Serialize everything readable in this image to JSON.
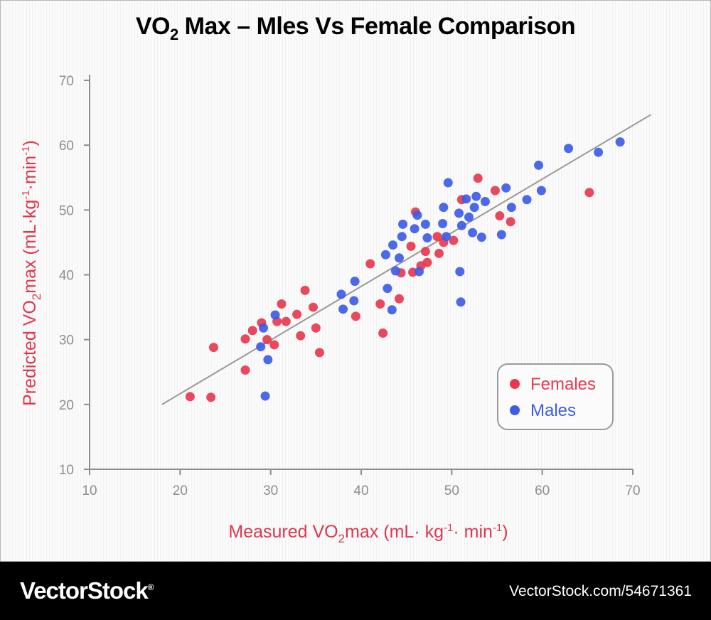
{
  "title": {
    "prefix": "VO",
    "subscript": "2",
    "suffix": " Max – Mles Vs Female Comparison"
  },
  "colors": {
    "females": "#e8384f",
    "males": "#3d5ce8",
    "axis": "#8e8e8e",
    "label": "#e0364d",
    "trend": "#999999"
  },
  "chart_data": {
    "type": "scatter",
    "title": "VO2 Max – Mles Vs Female Comparison",
    "xlabel": "Measured VO2max (mL·kg-1·min-1)",
    "ylabel": "Predicted VO2max (mL·kg-1·min-1)",
    "xlim": [
      10,
      70
    ],
    "ylim": [
      10,
      70
    ],
    "xticks": [
      10,
      20,
      30,
      40,
      50,
      60,
      70
    ],
    "yticks": [
      10,
      20,
      30,
      40,
      50,
      60,
      70
    ],
    "legend_position": "bottom-right",
    "trendline": {
      "x": [
        18,
        72
      ],
      "y": [
        20,
        64.7
      ]
    },
    "series": [
      {
        "name": "Females",
        "color": "#e8384f",
        "points": [
          [
            21.1,
            21.2
          ],
          [
            23.4,
            21.1
          ],
          [
            23.7,
            28.8
          ],
          [
            27.2,
            25.3
          ],
          [
            27.2,
            30.1
          ],
          [
            28,
            31.4
          ],
          [
            29,
            32.6
          ],
          [
            29.6,
            30
          ],
          [
            30.4,
            29.2
          ],
          [
            30.7,
            32.8
          ],
          [
            31.2,
            35.5
          ],
          [
            31.7,
            32.8
          ],
          [
            32.9,
            33.9
          ],
          [
            33.3,
            30.6
          ],
          [
            33.8,
            37.6
          ],
          [
            34.7,
            35
          ],
          [
            35,
            31.8
          ],
          [
            35.4,
            28
          ],
          [
            39.4,
            33.6
          ],
          [
            41,
            41.7
          ],
          [
            42.1,
            35.5
          ],
          [
            42.4,
            31
          ],
          [
            44.2,
            36.3
          ],
          [
            44.4,
            40.3
          ],
          [
            45.5,
            44.4
          ],
          [
            45.7,
            40.4
          ],
          [
            46,
            49.7
          ],
          [
            46.6,
            41.4
          ],
          [
            47.1,
            43.6
          ],
          [
            47.3,
            41.9
          ],
          [
            48.4,
            45.9
          ],
          [
            48.6,
            43.3
          ],
          [
            49.1,
            45
          ],
          [
            50.2,
            45.3
          ],
          [
            51.1,
            51.6
          ],
          [
            52.9,
            54.9
          ],
          [
            54.8,
            53
          ],
          [
            55.3,
            49.1
          ],
          [
            56.5,
            48.2
          ],
          [
            65.2,
            52.7
          ]
        ]
      },
      {
        "name": "Males",
        "color": "#3d5ce8",
        "points": [
          [
            28.9,
            28.9
          ],
          [
            29.2,
            31.8
          ],
          [
            29.4,
            21.3
          ],
          [
            29.7,
            26.9
          ],
          [
            30.5,
            33.8
          ],
          [
            37.8,
            37
          ],
          [
            38,
            34.7
          ],
          [
            39.3,
            39
          ],
          [
            39.2,
            36
          ],
          [
            42.7,
            43.1
          ],
          [
            42.9,
            37.9
          ],
          [
            43.4,
            34.6
          ],
          [
            43.5,
            44.6
          ],
          [
            43.8,
            40.6
          ],
          [
            44.2,
            42.6
          ],
          [
            44.5,
            45.9
          ],
          [
            44.6,
            47.8
          ],
          [
            45.9,
            47.1
          ],
          [
            46.2,
            49.2
          ],
          [
            46.4,
            40.5
          ],
          [
            47.1,
            47.8
          ],
          [
            47.3,
            45.7
          ],
          [
            49,
            47.9
          ],
          [
            49.1,
            50.4
          ],
          [
            49.4,
            45.9
          ],
          [
            49.6,
            54.2
          ],
          [
            50.8,
            49.5
          ],
          [
            50.9,
            40.5
          ],
          [
            51,
            35.8
          ],
          [
            51.1,
            47.6
          ],
          [
            51.6,
            51.7
          ],
          [
            51.9,
            48.9
          ],
          [
            52.3,
            46.5
          ],
          [
            52.5,
            50.4
          ],
          [
            52.7,
            52.1
          ],
          [
            53.3,
            45.8
          ],
          [
            53.7,
            51.3
          ],
          [
            55.5,
            46.2
          ],
          [
            56,
            53.4
          ],
          [
            56.6,
            50.4
          ],
          [
            58.3,
            51.6
          ],
          [
            59.6,
            56.9
          ],
          [
            59.9,
            53
          ],
          [
            62.9,
            59.5
          ],
          [
            66.2,
            58.9
          ],
          [
            68.6,
            60.5
          ]
        ]
      }
    ]
  },
  "axis_title_parts": {
    "x": {
      "a": "Measured VO",
      "b": "2",
      "c": "max (mL· kg",
      "d": "-1",
      "e": "· min",
      "f": "-1",
      "g": ")"
    },
    "y": {
      "a": "Predicted VO",
      "b": "2",
      "c": "max (mL·kg",
      "d": "-1",
      "e": "·min",
      "f": "-1",
      "g": ")"
    }
  },
  "footer": {
    "brand": "VectorStock",
    "registered": "®",
    "reference": "VectorStock.com/54671361"
  }
}
